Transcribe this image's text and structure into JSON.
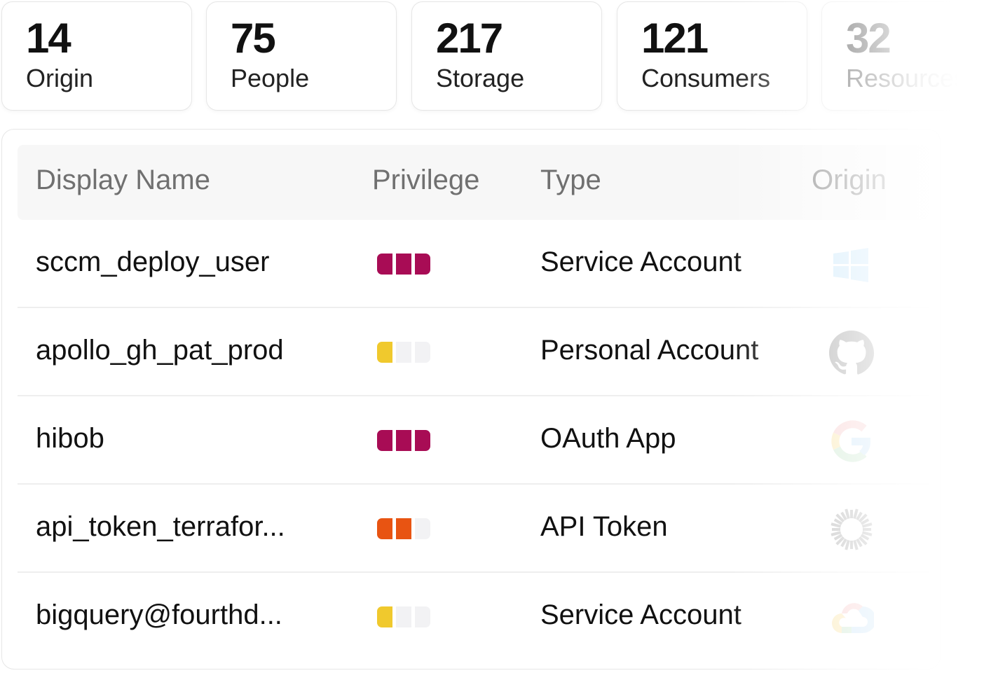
{
  "stats": [
    {
      "value": "14",
      "label": "Origin"
    },
    {
      "value": "75",
      "label": "People"
    },
    {
      "value": "217",
      "label": "Storage"
    },
    {
      "value": "121",
      "label": "Consumers"
    },
    {
      "value": "32",
      "label": "Resources"
    }
  ],
  "table": {
    "headers": {
      "name": "Display Name",
      "privilege": "Privilege",
      "type": "Type",
      "origin": "Origin"
    },
    "rows": [
      {
        "name": "sccm_deploy_user",
        "privilege_level": 3,
        "privilege_color": "#a80c55",
        "type": "Service Account",
        "origin_icon": "windows-icon"
      },
      {
        "name": "apollo_gh_pat_prod",
        "privilege_level": 1,
        "privilege_color": "#f0c92d",
        "type": "Personal Account",
        "origin_icon": "github-icon"
      },
      {
        "name": "hibob",
        "privilege_level": 3,
        "privilege_color": "#a80c55",
        "type": "OAuth App",
        "origin_icon": "google-icon"
      },
      {
        "name": "api_token_terrafor...",
        "privilege_level": 2,
        "privilege_color": "#e85412",
        "type": "API Token",
        "origin_icon": "terraform-sunburst-icon"
      },
      {
        "name": "bigquery@fourthd...",
        "privilege_level": 1,
        "privilege_color": "#f0c92d",
        "type": "Service Account",
        "origin_icon": "google-cloud-icon"
      }
    ]
  }
}
